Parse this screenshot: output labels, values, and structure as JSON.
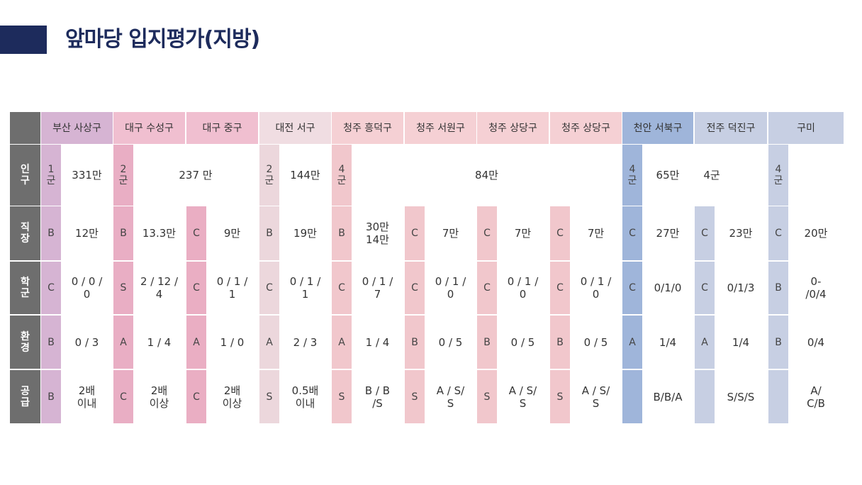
{
  "title": "앞마당 입지평가(지방)",
  "colors": {
    "title_bar": "#1d2b5c",
    "row_label_bg": "#6e6e6e",
    "col_colors": [
      "#d6b4d3",
      "#e9aec4",
      "#eaaec3",
      "#ecd7dc",
      "#f1c7cc",
      "#f1c7cc",
      "#f1c7cc",
      "#f1c7cc",
      "#9fb5da",
      "#c7cfe3",
      "#c7cfe3"
    ],
    "col_header_colors": [
      "#d6b4d3",
      "#f0bfd0",
      "#f0bfd0",
      "#f0dde2",
      "#f5d0d4",
      "#f5d0d4",
      "#f5d0d4",
      "#f5d0d4",
      "#9fb5da",
      "#c7cfe3",
      "#c7cfe3"
    ]
  },
  "table": {
    "columns": [
      "부산 사상구",
      "대구 수성구",
      "대구 중구",
      "대전 서구",
      "청주 흥덕구",
      "청주 서원구",
      "청주 상당구",
      "청주 상당구",
      "천안 서북구",
      "전주 덕진구",
      "구미"
    ],
    "row_labels": [
      "인\n구",
      "직\n장",
      "학\n군",
      "환\n경",
      "공\n급"
    ],
    "population": {
      "grades": [
        "1\n군",
        "2\n군",
        "",
        "2\n군",
        "4\n군",
        "",
        "",
        "",
        "4\n군",
        "",
        "4\n군"
      ],
      "values": [
        "331만",
        "237 만",
        "",
        "144만",
        "84만",
        "",
        "",
        "",
        "65만",
        "4군",
        ""
      ]
    },
    "jobs": {
      "grades": [
        "B",
        "B",
        "C",
        "B",
        "B",
        "C",
        "C",
        "C",
        "C",
        "C",
        "C"
      ],
      "values": [
        "12만",
        "13.3만",
        "9만",
        "19만",
        "30만\n14만",
        "7만",
        "7만",
        "7만",
        "27만",
        "23만",
        "20만"
      ]
    },
    "school": {
      "grades": [
        "C",
        "S",
        "C",
        "C",
        "C",
        "C",
        "C",
        "C",
        "C",
        "C",
        "B"
      ],
      "values": [
        "0 / 0 /\n0",
        "2 / 12 /\n4",
        "0 / 1 /\n1",
        "0 / 1 /\n1",
        "0 / 1 /\n7",
        "0 / 1 /\n0",
        "0 / 1 /\n0",
        "0 / 1 /\n0",
        "0/1/0",
        "0/1/3",
        "0-\n/0/4"
      ]
    },
    "environment": {
      "grades": [
        "B",
        "A",
        "A",
        "A",
        "A",
        "B",
        "B",
        "B",
        "A",
        "A",
        "B"
      ],
      "values": [
        "0 / 3",
        "1 / 4",
        "1 / 0",
        "2 / 3",
        "1 / 4",
        "0 / 5",
        "0 / 5",
        "0 / 5",
        "1/4",
        "1/4",
        "0/4"
      ]
    },
    "supply": {
      "grades": [
        "B",
        "C",
        "C",
        "S",
        "S",
        "S",
        "S",
        "S",
        "",
        "",
        ""
      ],
      "values": [
        "2배\n이내",
        "2배\n이상",
        "2배\n이상",
        "0.5배\n이내",
        "B / B\n/S",
        "A / S/\nS",
        "A / S/\nS",
        "A / S/\nS",
        "B/B/A",
        "S/S/S",
        "A/\nC/B"
      ]
    }
  }
}
